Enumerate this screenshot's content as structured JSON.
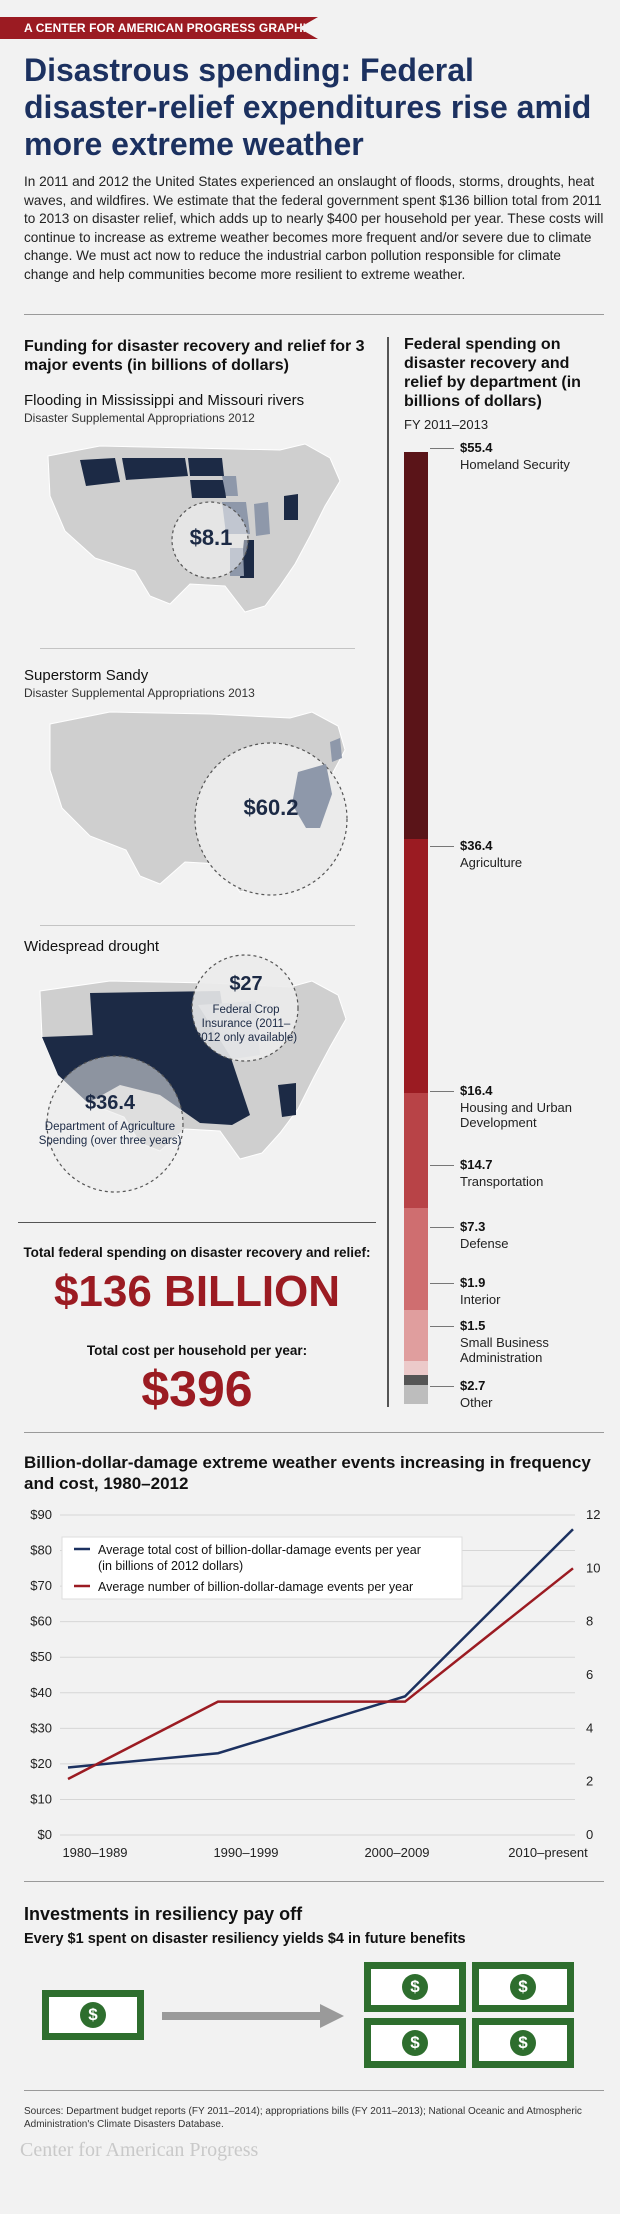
{
  "banner": "A CENTER FOR AMERICAN PROGRESS GRAPHIC",
  "title": "Disastrous spending: Federal disaster-relief expenditures rise amid more extreme weather",
  "intro": "In 2011 and 2012 the United States experienced an onslaught of floods, storms, droughts, heat waves, and wildfires. We estimate that the federal government spent $136 billion total from 2011 to 2013 on disaster relief, which adds up to nearly $400 per household per year. These costs will continue to increase as extreme weather becomes more frequent and/or severe due to climate change. We must act now to reduce the industrial carbon pollution responsible for climate change and help communities become more resilient to extreme weather.",
  "funding": {
    "heading": "Funding for disaster recovery and relief for 3 major events (in billions of dollars)",
    "events": [
      {
        "title": "Flooding in Mississippi and Missouri rivers",
        "subtitle": "Disaster Supplemental Appropriations 2012",
        "value": "$8.1"
      },
      {
        "title": "Superstorm Sandy",
        "subtitle": "Disaster Supplemental Appropriations 2013",
        "value": "$60.2"
      },
      {
        "title": "Widespread drought",
        "subtitle": "",
        "value": "$27",
        "note": "Federal Crop Insurance (2011–2012 only available)",
        "value2": "$36.4",
        "note2": "Department of Agriculture Spending  (over three years)"
      }
    ],
    "total_label": "Total federal spending on disaster recovery and relief:",
    "total_value": "$136 BILLION",
    "household_label": "Total cost per household per year:",
    "household_value": "$396"
  },
  "departments": {
    "heading": "Federal spending on disaster recovery and relief by department (in billions of dollars)",
    "years": "FY 2011–2013",
    "items": [
      {
        "value_label": "$55.4",
        "name": "Homeland Security",
        "value": 55.4,
        "color": "#5a1418"
      },
      {
        "value_label": "$36.4",
        "name": "Agriculture",
        "value": 36.4,
        "color": "#9b1b22"
      },
      {
        "value_label": "$16.4",
        "name": "Housing and Urban Development",
        "value": 16.4,
        "color": "#b84347"
      },
      {
        "value_label": "$14.7",
        "name": "Transportation",
        "value": 14.7,
        "color": "#cf6e70"
      },
      {
        "value_label": "$7.3",
        "name": "Defense",
        "value": 7.3,
        "color": "#e09e9e"
      },
      {
        "value_label": "$1.9",
        "name": "Interior",
        "value": 1.9,
        "color": "#eccaca"
      },
      {
        "value_label": "$1.5",
        "name": "Small Business Administration",
        "value": 1.5,
        "color": "#555555"
      },
      {
        "value_label": "$2.7",
        "name": "Other",
        "value": 2.7,
        "color": "#bdbdbd"
      }
    ]
  },
  "chart_data": {
    "type": "line",
    "title": "Billion-dollar-damage extreme weather events increasing in frequency and cost, 1980–2012",
    "categories": [
      "1980–1989",
      "1990–1999",
      "2000–2009",
      "2010–present"
    ],
    "left_ticks": [
      "$90",
      "$80",
      "$70",
      "$60",
      "$50",
      "$40",
      "$30",
      "$20",
      "$10",
      "$0"
    ],
    "right_ticks": [
      "12",
      "10",
      "8",
      "6",
      "4",
      "2",
      "0"
    ],
    "ylim_left": [
      0,
      90
    ],
    "ylim_right": [
      0,
      12
    ],
    "series": [
      {
        "name": "Average total cost of billion-dollar-damage events per year (in billions of 2012 dollars)",
        "axis": "left",
        "values": [
          19,
          23,
          39,
          86
        ],
        "color": "#1c3160"
      },
      {
        "name": "Average number of billion-dollar-damage events per year",
        "axis": "right",
        "values": [
          2.1,
          5,
          5,
          10
        ],
        "color": "#9b1b22"
      }
    ],
    "legend_lines": [
      "Average total cost of billion-dollar-damage events per year",
      "(in billions of 2012 dollars)",
      "Average number of billion-dollar-damage events per year"
    ],
    "legend_position": "top-left"
  },
  "investment": {
    "title": "Investments in resiliency pay off",
    "subtitle": "Every $1 spent on disaster resiliency yields $4 in future benefits",
    "symbol": "$"
  },
  "sources": "Sources: Department budget reports (FY 2011–2014); appropriations bills (FY 2011–2013); National Oceanic and Atmospheric Administration's Climate Disasters Database.",
  "footer": "Center for American Progress"
}
